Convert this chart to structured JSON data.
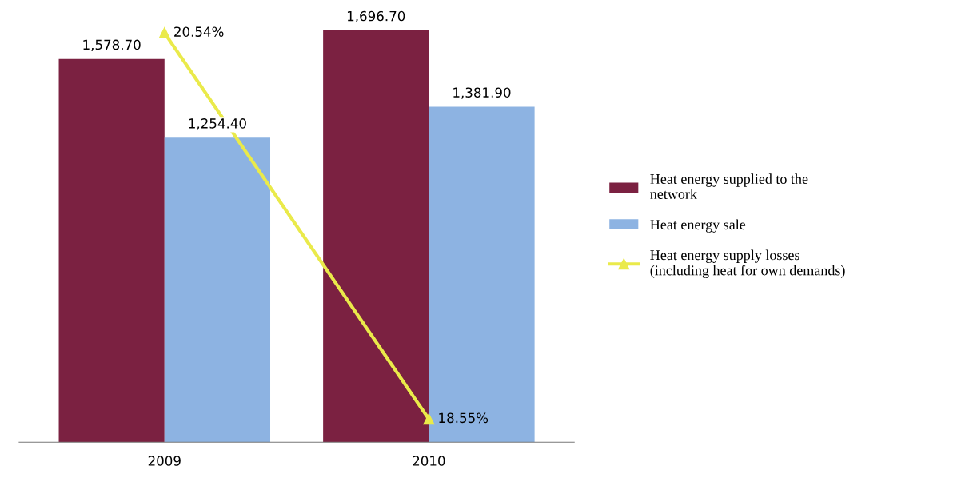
{
  "chart_data": {
    "type": "bar",
    "categories": [
      "2009",
      "2010"
    ],
    "tick_labels": "x",
    "grid": false,
    "legend": "right",
    "marker": "triangle",
    "series": [
      {
        "name": "Heat energy supplied to the network",
        "color": "#7b2141",
        "values": [
          1578.7,
          1696.7
        ],
        "value_labels": [
          "1,578.70",
          "1,696.70"
        ]
      },
      {
        "name": "Heat energy sale",
        "color": "#8db3e2",
        "values": [
          1254.4,
          1381.9
        ],
        "value_labels": [
          "1,254.40",
          "1,381.90"
        ]
      },
      {
        "name": "Heat energy supply losses (including heat for own demands)",
        "type": "line",
        "axis": "y2",
        "color": "#eaea4a",
        "values": [
          20.54,
          18.55
        ],
        "value_labels": [
          "20.54%",
          "18.55%"
        ]
      }
    ]
  }
}
